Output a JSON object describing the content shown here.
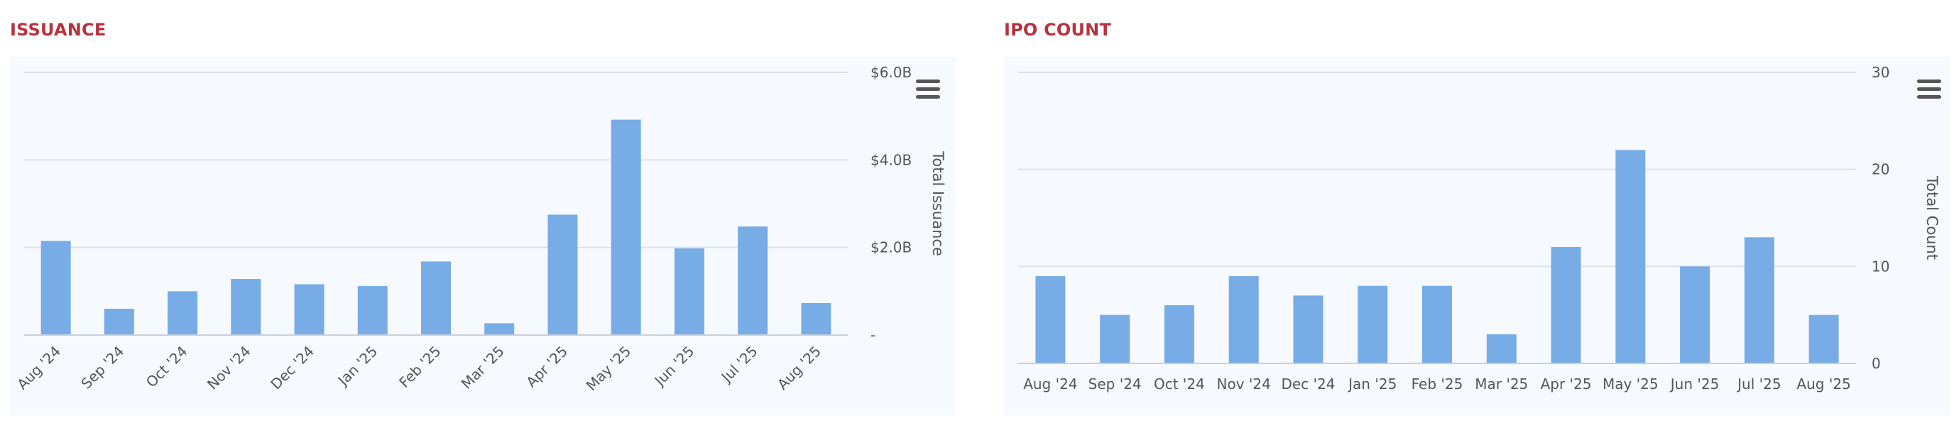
{
  "colors": {
    "title": "#b5333f",
    "bar": "#78ace6",
    "grid": "#dde2e8",
    "axis_text": "#555555",
    "menu": "#555555"
  },
  "icons": {
    "menu": "hamburger-menu-icon"
  },
  "chart_data": [
    {
      "type": "bar",
      "title": "ISSUANCE",
      "categories": [
        "Aug '24",
        "Sep '24",
        "Oct '24",
        "Nov '24",
        "Dec '24",
        "Jan '25",
        "Feb '25",
        "Mar '25",
        "Apr '25",
        "May '25",
        "Jun '25",
        "Jul '25",
        "Aug '25"
      ],
      "values": [
        2.15,
        0.6,
        1.0,
        1.28,
        1.16,
        1.12,
        1.68,
        0.27,
        2.75,
        4.92,
        1.98,
        2.48,
        0.73
      ],
      "ylabel": "Total Issuance",
      "ylim": [
        0,
        6
      ],
      "yticks": [
        0,
        2,
        4,
        6
      ],
      "ytick_labels": [
        "-",
        "$2.0B",
        "$4.0B",
        "$6.0B"
      ],
      "grid": true,
      "xtick_rotation": "rotated",
      "yaxis_side": "right"
    },
    {
      "type": "bar",
      "title": "IPO COUNT",
      "categories": [
        "Aug '24",
        "Sep '24",
        "Oct '24",
        "Nov '24",
        "Dec '24",
        "Jan '25",
        "Feb '25",
        "Mar '25",
        "Apr '25",
        "May '25",
        "Jun '25",
        "Jul '25",
        "Aug '25"
      ],
      "values": [
        9,
        5,
        6,
        9,
        7,
        8,
        8,
        3,
        12,
        22,
        10,
        13,
        5
      ],
      "ylabel": "Total Count",
      "ylim": [
        0,
        30
      ],
      "yticks": [
        0,
        10,
        20,
        30
      ],
      "ytick_labels": [
        "0",
        "10",
        "20",
        "30"
      ],
      "grid": true,
      "xtick_rotation": "horizontal",
      "yaxis_side": "right"
    }
  ]
}
